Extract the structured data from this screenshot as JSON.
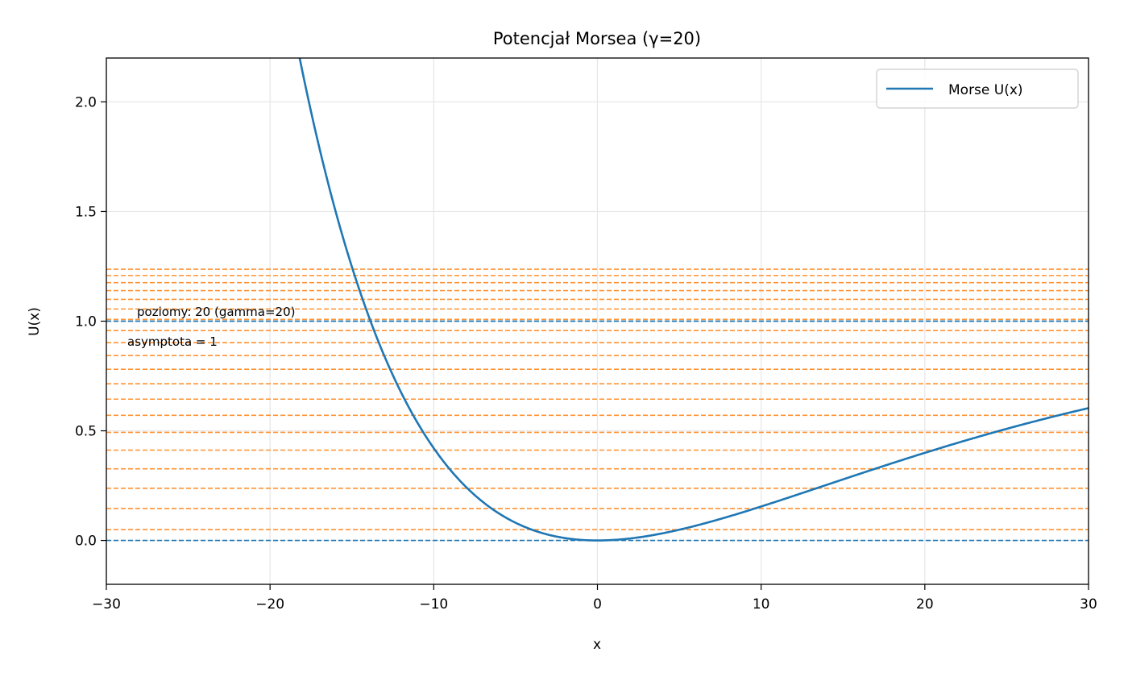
{
  "chart_data": {
    "type": "line",
    "title": "Potencjał Morsea (γ=20)",
    "xlabel": "x",
    "ylabel": "U(x)",
    "xlim": [
      -30,
      30
    ],
    "ylim": [
      -0.2,
      2.2
    ],
    "x_ticks": [
      -30,
      -20,
      -10,
      0,
      10,
      20,
      30
    ],
    "x_tick_labels": [
      "−30",
      "−20",
      "−10",
      "0",
      "10",
      "20",
      "30"
    ],
    "y_ticks": [
      0.0,
      0.5,
      1.0,
      1.5,
      2.0
    ],
    "y_tick_labels": [
      "0.0",
      "0.5",
      "1.0",
      "1.5",
      "2.0"
    ],
    "grid": true,
    "legend_position": "top-right",
    "series": [
      {
        "name": "Morse U(x)",
        "color": "#1f77b4",
        "function": "(1 - exp(-x/gamma))^2",
        "gamma": 20
      }
    ],
    "reference_lines": [
      {
        "y": 0.0,
        "color": "#1f77b4",
        "style": "dashed"
      },
      {
        "y": 1.0,
        "color": "#1f77b4",
        "style": "dashed"
      }
    ],
    "energy_levels": {
      "color": "#ff7f0e",
      "style": "dashed",
      "count": 20,
      "values": [
        0.0494,
        0.1456,
        0.2381,
        0.3269,
        0.4119,
        0.4931,
        0.5706,
        0.6444,
        0.7144,
        0.7806,
        0.8431,
        0.9019,
        0.9569,
        1.0081,
        1.0556,
        1.0994,
        1.1394,
        1.1756,
        1.2081,
        1.2369
      ]
    },
    "annotations": {
      "levels_note": "poziomy: 20 (gamma=20)",
      "asymptote_note": "asymptota = 1"
    }
  }
}
